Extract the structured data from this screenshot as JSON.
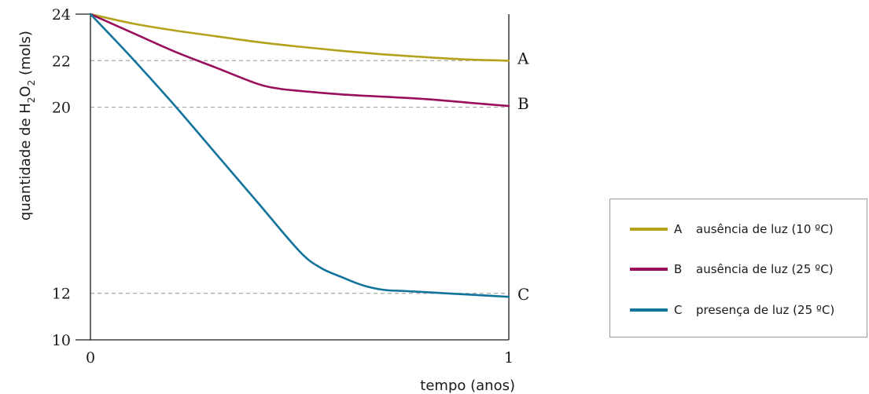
{
  "chart_data": {
    "type": "line",
    "xlabel": "tempo (anos)",
    "ylabel": {
      "prefix": "quantidade de H",
      "sub1": "2",
      "mid": "O",
      "sub2": "2",
      "suffix": " (mols)"
    },
    "xlim": [
      0,
      1
    ],
    "ylim": [
      10,
      24
    ],
    "x_ticks": [
      "0",
      "1"
    ],
    "y_ticks": [
      {
        "value": 10,
        "label": "10"
      },
      {
        "value": 12,
        "label": "12"
      },
      {
        "value": 20,
        "label": "20"
      },
      {
        "value": 22,
        "label": "22"
      },
      {
        "value": 24,
        "label": "24"
      }
    ],
    "reference_lines": [
      12,
      20,
      22
    ],
    "series": [
      {
        "key": "A",
        "name": "ausência de luz (10 ºC)",
        "color": "#b3a21c",
        "x": [
          0,
          0.1,
          0.2,
          0.3,
          0.4,
          0.5,
          0.6,
          0.7,
          0.8,
          0.9,
          1.0
        ],
        "y": [
          24,
          23.6,
          23.3,
          23.05,
          22.8,
          22.6,
          22.42,
          22.27,
          22.15,
          22.05,
          22.0
        ]
      },
      {
        "key": "B",
        "name": "ausência de luz (25 ºC)",
        "color": "#9a0f5c",
        "x": [
          0,
          0.1,
          0.2,
          0.3,
          0.4,
          0.45,
          0.5,
          0.6,
          0.7,
          0.8,
          0.9,
          1.0
        ],
        "y": [
          24,
          23.2,
          22.4,
          21.7,
          21.0,
          20.8,
          20.7,
          20.55,
          20.45,
          20.35,
          20.2,
          20.05
        ]
      },
      {
        "key": "C",
        "name": "presença de luz (25 ºC)",
        "color": "#12739b",
        "x": [
          0,
          0.1,
          0.2,
          0.3,
          0.4,
          0.5,
          0.55,
          0.6,
          0.65,
          0.7,
          0.75,
          0.8,
          0.9,
          1.0
        ],
        "y": [
          24,
          22.1,
          20.1,
          18.0,
          15.9,
          13.8,
          13.1,
          12.7,
          12.35,
          12.15,
          12.1,
          12.05,
          11.95,
          11.85
        ]
      }
    ]
  }
}
